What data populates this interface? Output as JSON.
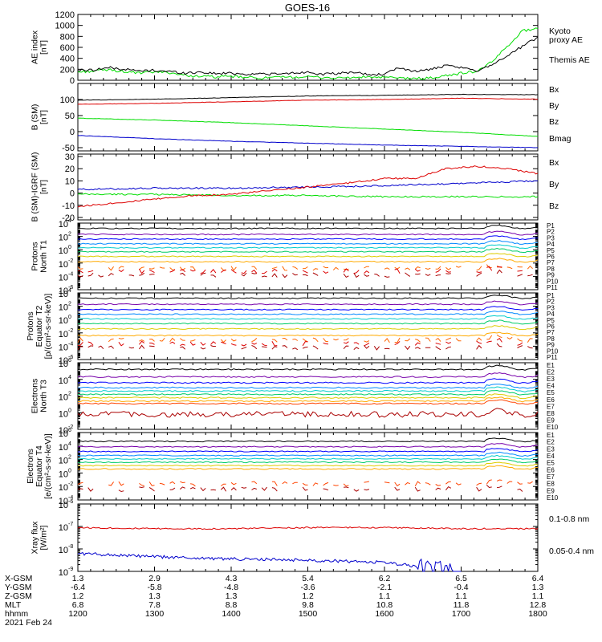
{
  "title": "GOES-16",
  "chart_data": [
    {
      "type": "line",
      "panel": "ae",
      "ylabel_lines": [
        "AE index",
        "[nT]"
      ],
      "ylim": [
        0,
        1200
      ],
      "yticks": [
        0,
        200,
        400,
        600,
        800,
        1000,
        1200
      ],
      "scale": "linear",
      "legend_placement": "right",
      "series": [
        {
          "name": "Kyoto proxy AE",
          "label_lines": [
            "Kyoto",
            "proxy AE"
          ],
          "color": "#00dd00",
          "x": [
            12.0,
            12.2,
            12.4,
            12.6,
            12.8,
            13.0,
            13.2,
            13.4,
            13.6,
            13.8,
            14.0,
            14.2,
            14.4,
            14.6,
            14.8,
            15.0,
            15.2,
            15.4,
            15.6,
            15.8,
            16.0,
            16.2,
            16.4,
            16.6,
            16.8,
            17.0,
            17.2,
            17.4,
            17.6,
            17.8,
            18.0
          ],
          "y": [
            150,
            170,
            190,
            160,
            130,
            150,
            140,
            90,
            70,
            60,
            70,
            50,
            40,
            50,
            60,
            60,
            50,
            40,
            50,
            60,
            50,
            40,
            30,
            40,
            80,
            130,
            160,
            330,
            620,
            900,
            950
          ]
        },
        {
          "name": "Themis AE",
          "label_lines": [
            "Themis AE"
          ],
          "color": "#000000",
          "x": [
            12.0,
            12.2,
            12.4,
            12.6,
            12.8,
            13.0,
            13.2,
            13.4,
            13.6,
            13.8,
            14.0,
            14.2,
            14.4,
            14.6,
            14.8,
            15.0,
            15.2,
            15.4,
            15.6,
            15.8,
            16.0,
            16.2,
            16.4,
            16.6,
            16.8,
            17.0,
            17.2,
            17.4,
            17.6,
            17.8,
            18.0
          ],
          "y": [
            180,
            190,
            230,
            200,
            170,
            180,
            160,
            130,
            150,
            120,
            130,
            110,
            120,
            110,
            130,
            150,
            110,
            120,
            150,
            100,
            110,
            230,
            160,
            200,
            260,
            230,
            170,
            290,
            440,
            620,
            780
          ]
        }
      ]
    },
    {
      "type": "line",
      "panel": "b-sm",
      "ylabel_lines": [
        "B (SM)",
        "[nT]"
      ],
      "ylim": [
        -60,
        150
      ],
      "yticks": [
        -50,
        0,
        50,
        100
      ],
      "scale": "linear",
      "legend_placement": "right",
      "series": [
        {
          "name": "Bx",
          "color": "#0000cc",
          "x": [
            12,
            13,
            14,
            15,
            16,
            17,
            18
          ],
          "y": [
            -12,
            -22,
            -30,
            -36,
            -42,
            -46,
            -50
          ]
        },
        {
          "name": "By",
          "color": "#00dd00",
          "x": [
            12,
            13,
            14,
            15,
            16,
            17,
            18
          ],
          "y": [
            42,
            36,
            28,
            18,
            8,
            -2,
            -15
          ]
        },
        {
          "name": "Bz",
          "color": "#dd0000",
          "x": [
            12,
            13,
            14,
            15,
            16,
            17,
            18
          ],
          "y": [
            85,
            88,
            93,
            98,
            100,
            104,
            101
          ]
        },
        {
          "name": "Bmag",
          "color": "#000000",
          "x": [
            12,
            13,
            14,
            15,
            16,
            17,
            18
          ],
          "y": [
            98,
            101,
            106,
            111,
            113,
            116,
            115
          ]
        }
      ]
    },
    {
      "type": "line",
      "panel": "b-igrf",
      "ylabel_lines": [
        "B (SM)-IGRF (SM)",
        "[nT]"
      ],
      "ylim": [
        -22,
        32
      ],
      "yticks": [
        -20,
        -10,
        0,
        10,
        20,
        30
      ],
      "scale": "linear",
      "legend_placement": "right",
      "series": [
        {
          "name": "Bx",
          "color": "#0000cc",
          "x": [
            12,
            13,
            14,
            15,
            16,
            17,
            18
          ],
          "y": [
            3,
            4,
            4,
            5,
            6,
            8,
            10
          ]
        },
        {
          "name": "By",
          "color": "#00dd00",
          "x": [
            12,
            13,
            14,
            15,
            16,
            17,
            18
          ],
          "y": [
            -1,
            -1,
            -2,
            -2,
            -3,
            -3,
            -3
          ]
        },
        {
          "name": "Bz",
          "color": "#dd0000",
          "x": [
            12,
            12.5,
            13,
            13.5,
            14,
            14.5,
            15,
            15.5,
            16,
            16.4,
            16.8,
            17.2,
            17.6,
            18
          ],
          "y": [
            -11,
            -8,
            -5,
            -2,
            -1,
            2,
            5,
            8,
            12,
            12,
            20,
            22,
            20,
            16
          ]
        }
      ]
    },
    {
      "type": "line",
      "panel": "protons-t1",
      "ylabel_lines": [
        "Protons",
        "North T1"
      ],
      "scale": "log",
      "ylim_exp": [
        -6,
        4
      ],
      "ytick_exps": [
        -6,
        -4,
        -2,
        0,
        2,
        4
      ],
      "channels": [
        "P1",
        "P2",
        "P3",
        "P4",
        "P5",
        "P6",
        "P7",
        "P8",
        "P9",
        "P10",
        "P11"
      ],
      "channel_colors": [
        "#000000",
        "#7700aa",
        "#0000ff",
        "#0088ff",
        "#00cccc",
        "#00cc66",
        "#ddcc00",
        "#ffaa00",
        "#ff6600",
        "#dd0000",
        "#aa0000"
      ],
      "channel_log_levels": [
        3.2,
        2.3,
        1.6,
        0.9,
        0.3,
        -0.3,
        -1.0,
        -1.8,
        -2.8,
        -3.2,
        -3.8
      ]
    },
    {
      "type": "line",
      "panel": "protons-t2",
      "ylabel_lines": [
        "Protons",
        "Equator T2",
        "[p/(cm²-s-sr-keV)]"
      ],
      "scale": "log",
      "ylim_exp": [
        -6,
        4
      ],
      "ytick_exps": [
        -6,
        -4,
        -2,
        0,
        2,
        4
      ],
      "channels": [
        "P1",
        "P2",
        "P3",
        "P4",
        "P5",
        "P6",
        "P7",
        "P8",
        "P9",
        "P10",
        "P11"
      ],
      "channel_colors": [
        "#000000",
        "#7700aa",
        "#0000ff",
        "#0088ff",
        "#00cccc",
        "#00cc66",
        "#ddcc00",
        "#ffaa00",
        "#ff6600",
        "#dd0000",
        "#aa0000"
      ],
      "channel_log_levels": [
        3.2,
        2.3,
        1.5,
        0.8,
        0.1,
        -0.6,
        -1.4,
        -2.4,
        -3.1,
        -3.6,
        -4.2
      ]
    },
    {
      "type": "line",
      "panel": "electrons-t3",
      "ylabel_lines": [
        "Electrons",
        "North T3"
      ],
      "scale": "log",
      "ylim_exp": [
        -2,
        6
      ],
      "ytick_exps": [
        -2,
        0,
        2,
        4,
        6
      ],
      "channels": [
        "E1",
        "E2",
        "E3",
        "E4",
        "E5",
        "E6",
        "E7",
        "E8",
        "E9",
        "E10"
      ],
      "channel_colors": [
        "#000000",
        "#7700aa",
        "#0000ff",
        "#0088ff",
        "#00cccc",
        "#00cc66",
        "#ddcc00",
        "#ffaa00",
        "#ff4400",
        "#aa0000"
      ],
      "channel_log_levels": [
        5.2,
        4.3,
        3.6,
        3.0,
        2.6,
        2.2,
        1.8,
        1.4,
        1.1,
        -0.2
      ]
    },
    {
      "type": "line",
      "panel": "electrons-t4",
      "ylabel_lines": [
        "Electrons",
        "Equator T4",
        "[e/(cm²-s-sr-keV)]"
      ],
      "scale": "log",
      "ylim_exp": [
        -4,
        6
      ],
      "ytick_exps": [
        -4,
        -2,
        0,
        2,
        4,
        6
      ],
      "channels": [
        "E1",
        "E2",
        "E3",
        "E4",
        "E5",
        "E6",
        "E7",
        "E8",
        "E9",
        "E10"
      ],
      "channel_colors": [
        "#000000",
        "#7700aa",
        "#0000ff",
        "#0088ff",
        "#00cccc",
        "#00cc66",
        "#ddcc00",
        "#ffaa00",
        "#ff4400",
        "#aa0000"
      ],
      "channel_log_levels": [
        4.7,
        3.9,
        3.2,
        2.6,
        2.1,
        1.6,
        1.1,
        0.6,
        -1.6,
        -2.4
      ]
    },
    {
      "type": "line",
      "panel": "xray",
      "ylabel_lines": [
        "Xray flux",
        "[W/m²]"
      ],
      "scale": "log",
      "ylim_exp": [
        -9,
        -6
      ],
      "ytick_exps": [
        -9,
        -8,
        -7,
        -6
      ],
      "legend_placement": "right",
      "series": [
        {
          "name": "0.1-0.8 nm",
          "color": "#dd0000",
          "x": [
            12,
            13,
            14,
            15,
            16,
            17,
            18
          ],
          "y_exp": [
            -7.05,
            -7.1,
            -7.1,
            -7.05,
            -7.05,
            -7.1,
            -7.1
          ]
        },
        {
          "name": "0.05-0.4 nm",
          "color": "#0000cc",
          "x": [
            12,
            13,
            14,
            15,
            16,
            16.6,
            17.0
          ],
          "y_exp": [
            -8.2,
            -8.35,
            -8.45,
            -8.5,
            -8.6,
            -8.85,
            -9.0
          ]
        }
      ]
    }
  ],
  "time_axis": {
    "x_range": [
      12,
      18
    ],
    "rows": [
      {
        "label": "X-GSM",
        "values": [
          "1.3",
          "2.9",
          "4.3",
          "5.4",
          "6.2",
          "6.5",
          "6.4"
        ]
      },
      {
        "label": "Y-GSM",
        "values": [
          "-6.4",
          "-5.8",
          "-4.8",
          "-3.6",
          "-2.1",
          "-0.4",
          "1.3"
        ]
      },
      {
        "label": "Z-GSM",
        "values": [
          "1.2",
          "1.3",
          "1.3",
          "1.2",
          "1.1",
          "1.1",
          "1.1"
        ]
      },
      {
        "label": "MLT",
        "values": [
          "6.8",
          "7.8",
          "8.8",
          "9.8",
          "10.8",
          "11.8",
          "12.8"
        ]
      },
      {
        "label": "hhmm",
        "values": [
          "1200",
          "1300",
          "1400",
          "1500",
          "1600",
          "1700",
          "1800"
        ]
      }
    ],
    "date": "2021 Feb 24"
  }
}
